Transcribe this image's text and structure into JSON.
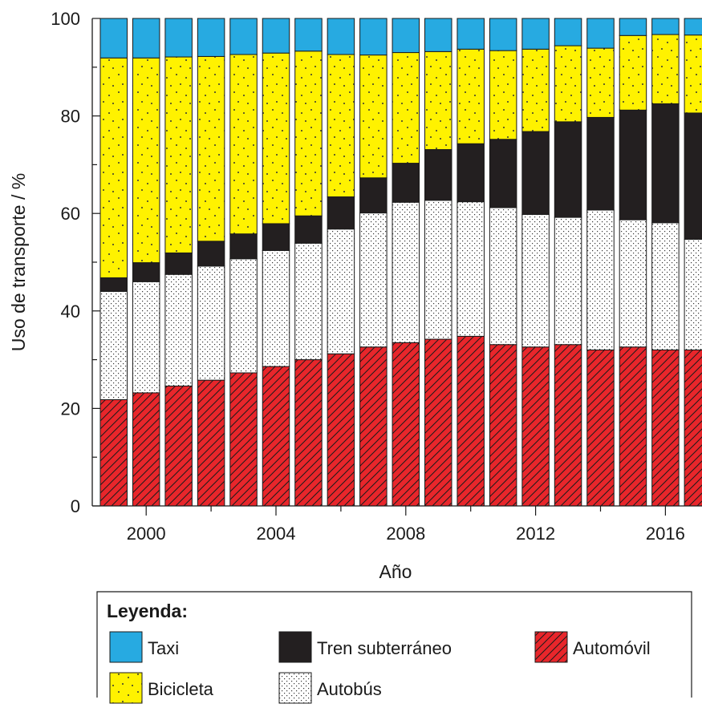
{
  "chart_data": {
    "type": "bar",
    "stacked": true,
    "x": [
      1999,
      2000,
      2001,
      2002,
      2003,
      2004,
      2005,
      2006,
      2007,
      2008,
      2009,
      2010,
      2011,
      2012,
      2013,
      2014,
      2015,
      2016,
      2017
    ],
    "x_ticks": [
      "2000",
      "2004",
      "2008",
      "2012",
      "2016"
    ],
    "y_ticks": [
      "0",
      "20",
      "40",
      "60",
      "80",
      "100"
    ],
    "xlabel": "Año",
    "ylabel": "Uso de transporte / %",
    "ylim": [
      0,
      100
    ],
    "grid": false,
    "legend_title": "Leyenda:",
    "legend_position": "bottom",
    "series": [
      {
        "name": "Automóvil",
        "color": "#e8262b",
        "pattern": "diagonal-hatch",
        "values": [
          21.8,
          23.2,
          24.6,
          25.8,
          27.3,
          28.6,
          30.0,
          31.2,
          32.6,
          33.5,
          34.2,
          34.8,
          33.1,
          32.6,
          33.1,
          32.0,
          32.6,
          32.0,
          32.0
        ]
      },
      {
        "name": "Autobús",
        "color": "#ffffff",
        "pattern": "dotted-diagonal",
        "values": [
          22.2,
          22.8,
          22.9,
          23.4,
          23.4,
          23.8,
          23.9,
          25.6,
          27.5,
          28.8,
          28.5,
          27.6,
          28.1,
          27.2,
          26.1,
          28.7,
          26.1,
          26.1,
          22.7
        ]
      },
      {
        "name": "Tren subterráneo",
        "color": "#231f20",
        "pattern": "solid",
        "values": [
          2.8,
          3.9,
          4.4,
          5.1,
          5.1,
          5.5,
          5.6,
          6.6,
          7.2,
          8.0,
          10.4,
          11.9,
          14.0,
          17.0,
          19.6,
          19.0,
          22.5,
          24.4,
          25.9
        ]
      },
      {
        "name": "Bicicleta",
        "color": "#fff200",
        "pattern": "dots",
        "values": [
          45.1,
          42.0,
          40.2,
          37.9,
          36.8,
          35.0,
          33.8,
          29.2,
          25.2,
          22.7,
          20.1,
          19.4,
          18.2,
          16.9,
          15.6,
          14.2,
          15.3,
          14.2,
          16.0
        ]
      },
      {
        "name": "Taxi",
        "color": "#27aae1",
        "pattern": "solid",
        "values": [
          8.1,
          8.1,
          7.9,
          7.8,
          7.4,
          7.1,
          6.7,
          7.4,
          7.5,
          7.0,
          6.8,
          6.3,
          6.6,
          6.3,
          5.6,
          6.1,
          3.5,
          3.3,
          3.4
        ]
      }
    ]
  }
}
